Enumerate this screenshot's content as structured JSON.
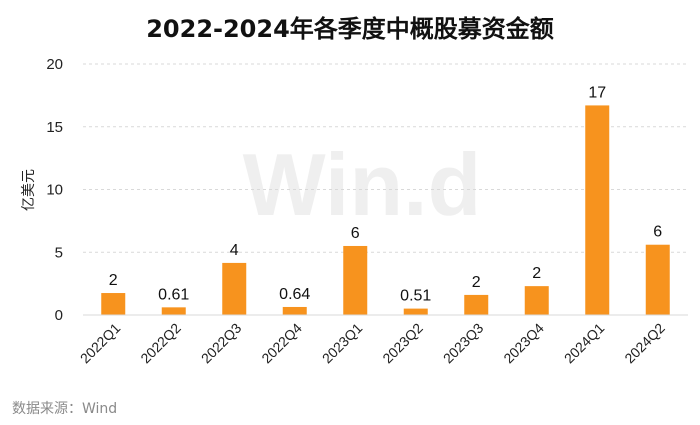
{
  "chart_data": {
    "type": "bar",
    "title": "2022-2024年各季度中概股募资金额",
    "ylabel": "亿美元",
    "xlabel": "",
    "categories": [
      "2022Q1",
      "2022Q2",
      "2022Q3",
      "2022Q4",
      "2023Q1",
      "2023Q2",
      "2023Q3",
      "2023Q4",
      "2024Q1",
      "2024Q2"
    ],
    "values": [
      1.75,
      0.61,
      4.15,
      0.64,
      5.5,
      0.51,
      1.6,
      2.3,
      16.7,
      5.6
    ],
    "data_labels": [
      "2",
      "0.61",
      "4",
      "0.64",
      "6",
      "0.51",
      "2",
      "2",
      "17",
      "6"
    ],
    "ylim": [
      0,
      20
    ],
    "yticks": [
      0,
      5,
      10,
      15,
      20
    ],
    "grid": true,
    "bar_color": "#F7931E"
  },
  "watermark": "Win.d",
  "source": "数据来源：Wind"
}
